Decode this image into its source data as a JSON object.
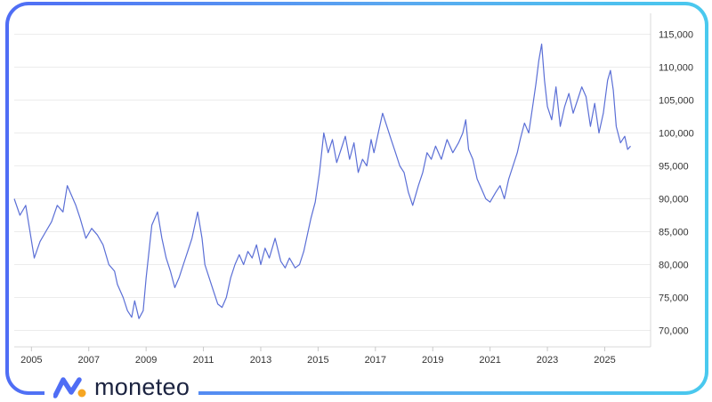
{
  "brand": {
    "name": "moneteo",
    "logo_icon": "moneteo-logo-icon",
    "colors": {
      "primary": "#4f6df5",
      "accent": "#f6a623",
      "text": "#1b2340",
      "frame_end": "#49c9ee"
    }
  },
  "chart_data": {
    "type": "line",
    "title": "",
    "xlabel": "",
    "ylabel": "",
    "xlim": [
      2004.4,
      2026.6
    ],
    "ylim": [
      67500,
      117500
    ],
    "y_ticks": [
      70000,
      75000,
      80000,
      85000,
      90000,
      95000,
      100000,
      105000,
      110000,
      115000
    ],
    "y_tick_labels": [
      "70,000",
      "75,000",
      "80,000",
      "85,000",
      "90,000",
      "95,000",
      "100,000",
      "105,000",
      "110,000",
      "115,000"
    ],
    "x_ticks": [
      2005,
      2007,
      2009,
      2011,
      2013,
      2015,
      2017,
      2019,
      2021,
      2023,
      2025
    ],
    "x_tick_labels": [
      "2005",
      "2007",
      "2009",
      "2011",
      "2013",
      "2015",
      "2017",
      "2019",
      "2021",
      "2023",
      "2025"
    ],
    "y_axis_position": "right",
    "grid": "horizontal",
    "legend": "none",
    "line_color": "#5b6fd6",
    "series": [
      {
        "x": [
          2004.4,
          2004.6,
          2004.8,
          2004.95,
          2005.1,
          2005.3,
          2005.5,
          2005.7,
          2005.9,
          2006.1,
          2006.25,
          2006.4,
          2006.55,
          2006.7,
          2006.9,
          2007.1,
          2007.3,
          2007.5,
          2007.7,
          2007.9,
          2008.0,
          2008.2,
          2008.35,
          2008.5,
          2008.6,
          2008.75,
          2008.9,
          2009.0,
          2009.2,
          2009.4,
          2009.55,
          2009.7,
          2009.85,
          2010.0,
          2010.15,
          2010.3,
          2010.45,
          2010.6,
          2010.8,
          2010.95,
          2011.05,
          2011.2,
          2011.35,
          2011.5,
          2011.65,
          2011.8,
          2011.95,
          2012.1,
          2012.25,
          2012.4,
          2012.55,
          2012.7,
          2012.85,
          2013.0,
          2013.15,
          2013.3,
          2013.5,
          2013.7,
          2013.85,
          2014.0,
          2014.2,
          2014.35,
          2014.5,
          2014.6,
          2014.75,
          2014.9,
          2015.05,
          2015.2,
          2015.35,
          2015.5,
          2015.65,
          2015.8,
          2015.95,
          2016.1,
          2016.25,
          2016.4,
          2016.55,
          2016.7,
          2016.85,
          2016.95,
          2017.1,
          2017.25,
          2017.4,
          2017.55,
          2017.7,
          2017.85,
          2018.0,
          2018.15,
          2018.3,
          2018.5,
          2018.65,
          2018.8,
          2018.95,
          2019.1,
          2019.3,
          2019.5,
          2019.7,
          2019.9,
          2020.05,
          2020.15,
          2020.25,
          2020.4,
          2020.55,
          2020.7,
          2020.85,
          2021.0,
          2021.2,
          2021.35,
          2021.5,
          2021.65,
          2021.8,
          2021.95,
          2022.05,
          2022.2,
          2022.35,
          2022.5,
          2022.6,
          2022.7,
          2022.8,
          2022.9,
          2023.0,
          2023.15,
          2023.3,
          2023.45,
          2023.6,
          2023.75,
          2023.9,
          2024.05,
          2024.2,
          2024.35,
          2024.5,
          2024.65,
          2024.8,
          2024.95,
          2025.1,
          2025.2,
          2025.3,
          2025.4,
          2025.55,
          2025.7,
          2025.8,
          2025.9
        ],
        "y": [
          90000,
          87500,
          89000,
          85000,
          81000,
          83500,
          85000,
          86500,
          89000,
          88000,
          92000,
          90500,
          89000,
          87000,
          84000,
          85500,
          84500,
          83000,
          80000,
          79000,
          77000,
          75000,
          73000,
          72000,
          74500,
          71800,
          73000,
          78000,
          86000,
          88000,
          84000,
          81000,
          79000,
          76500,
          78000,
          80000,
          82000,
          84000,
          88000,
          84000,
          80000,
          78000,
          76000,
          74000,
          73500,
          75000,
          78000,
          80000,
          81500,
          80000,
          82000,
          81000,
          83000,
          80000,
          82500,
          81000,
          84000,
          80500,
          79500,
          81000,
          79500,
          80000,
          82000,
          84000,
          87000,
          89500,
          94000,
          100000,
          97000,
          99000,
          95500,
          97500,
          99500,
          96000,
          98500,
          94000,
          96000,
          95000,
          99000,
          97000,
          100000,
          103000,
          101000,
          99000,
          97000,
          95000,
          94000,
          91000,
          89000,
          92000,
          94000,
          97000,
          96000,
          98000,
          96000,
          99000,
          97000,
          98500,
          100000,
          102000,
          97500,
          96000,
          93000,
          91500,
          90000,
          89500,
          91000,
          92000,
          90000,
          93000,
          95000,
          97000,
          99000,
          101500,
          100000,
          104500,
          107500,
          111000,
          113500,
          108000,
          104000,
          102000,
          107000,
          101000,
          104000,
          106000,
          103000,
          105000,
          107000,
          105500,
          101000,
          104500,
          100000,
          103000,
          108000,
          109500,
          106500,
          101000,
          98500,
          99500,
          97500,
          98000
        ]
      }
    ]
  }
}
